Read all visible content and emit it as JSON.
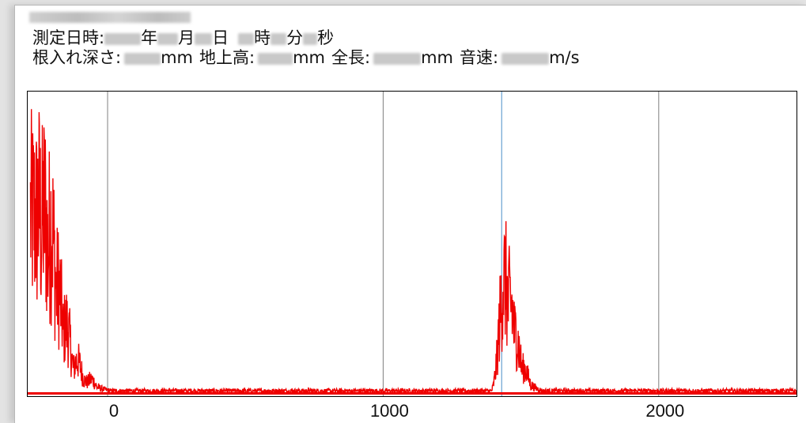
{
  "window": {
    "measurement": {
      "datetime_label": "測定日時:",
      "year_unit": "年",
      "month_unit": "月",
      "day_unit": "日",
      "hour_unit": "時",
      "minute_unit": "分",
      "second_unit": "秒"
    },
    "parameters": {
      "embed_depth_label": "根入れ深さ:",
      "embed_depth_unit": "mm",
      "above_ground_label": "地上高:",
      "above_ground_unit": "mm",
      "total_length_label": "全長:",
      "total_length_unit": "mm",
      "sound_speed_label": "音速:",
      "sound_speed_unit": "m/s"
    }
  },
  "chart_data": {
    "type": "line",
    "title": "",
    "xlabel": "",
    "ylabel": "",
    "x_ticks": [
      0,
      1000,
      2000
    ],
    "x_tick_labels": [
      "0",
      "1000",
      "2000"
    ],
    "xlim": [
      -290,
      2500
    ],
    "ylim": [
      0,
      1
    ],
    "grid": {
      "vertical_lines_at": [
        0,
        1000,
        2000
      ],
      "horizontal": false
    },
    "marker_line_x": 1430,
    "series": [
      {
        "color": "#ee0000",
        "peaks": [
          {
            "x": -250,
            "y": 1.0
          },
          {
            "x": -230,
            "y": 0.98
          },
          {
            "x": -205,
            "y": 0.9
          },
          {
            "x": -180,
            "y": 0.58
          },
          {
            "x": -150,
            "y": 0.37
          },
          {
            "x": -110,
            "y": 0.18
          },
          {
            "x": -60,
            "y": 0.08
          },
          {
            "x": 1440,
            "y": 0.61
          },
          {
            "x": 1460,
            "y": 0.5
          },
          {
            "x": 1480,
            "y": 0.32
          },
          {
            "x": 1510,
            "y": 0.14
          }
        ],
        "baseline_level": 0.02
      }
    ],
    "legend": "none",
    "line_colors": {
      "grid": "#7f7f7f",
      "marker": "#4a90c8",
      "frame": "#000000"
    }
  }
}
